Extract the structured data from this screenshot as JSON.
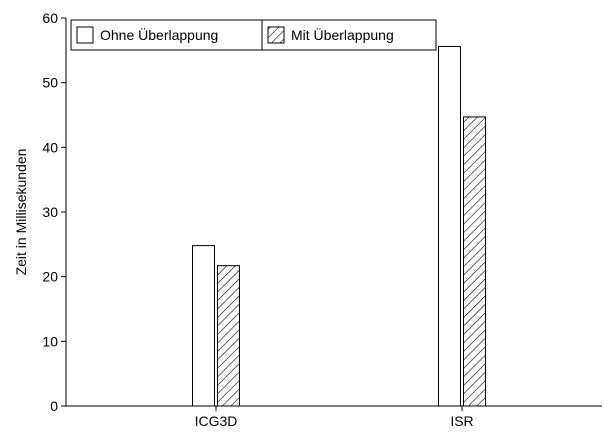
{
  "chart_data": {
    "type": "bar",
    "categories": [
      "ICG3D",
      "ISR"
    ],
    "series": [
      {
        "name": "Ohne Überlappung",
        "values": [
          24.8,
          55.6
        ],
        "fill": "#ffffff",
        "pattern": "none"
      },
      {
        "name": "Mit Überlappung",
        "values": [
          21.7,
          44.7
        ],
        "fill": "#ffffff",
        "pattern": "diagonal-hatch"
      }
    ],
    "ylabel": "Zeit in Millisekunden",
    "xlabel": "",
    "title": "",
    "ylim": [
      0,
      60
    ],
    "yticks": [
      0,
      10,
      20,
      30,
      40,
      50,
      60
    ],
    "grid": false,
    "legend": {
      "position": "top-left",
      "entries": [
        "Ohne Überlappung",
        "Mit Überlappung"
      ]
    }
  }
}
